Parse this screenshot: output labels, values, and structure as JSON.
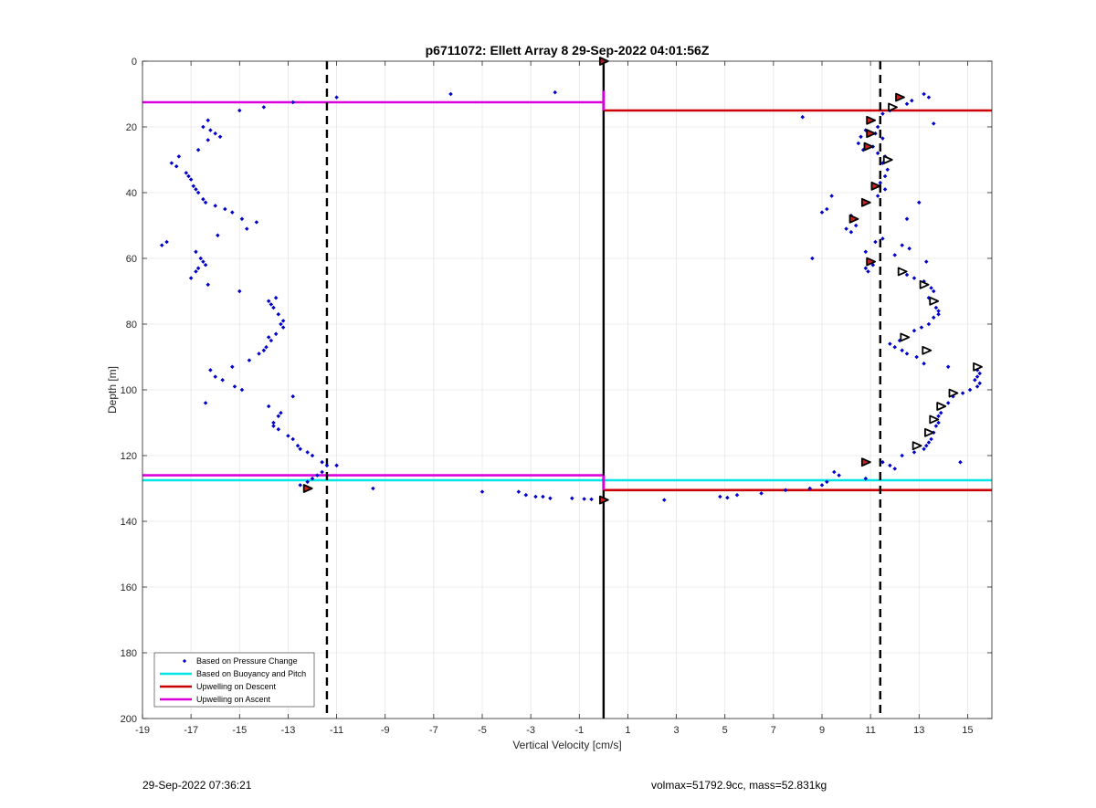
{
  "chart_data": {
    "type": "scatter",
    "title": "p6711072: Ellett Array 8 29-Sep-2022 04:01:56Z",
    "xlabel": "Vertical Velocity [cm/s]",
    "ylabel": "Depth [m]",
    "xlim": [
      -19,
      16
    ],
    "ylim": [
      0,
      200
    ],
    "y_reversed": true,
    "grid": true,
    "x_ticks": [
      -19,
      -17,
      -15,
      -13,
      -11,
      -9,
      -7,
      -5,
      -3,
      -1,
      1,
      3,
      5,
      7,
      9,
      11,
      13,
      15
    ],
    "y_ticks": [
      0,
      20,
      40,
      60,
      80,
      100,
      120,
      140,
      160,
      180,
      200
    ],
    "legend_position": "bottom-left",
    "legend": [
      {
        "label": "Based on Pressure Change",
        "color": "#0000cc",
        "kind": "dot"
      },
      {
        "label": "Based on Buoyancy and Pitch",
        "color": "#00e5e5",
        "kind": "line"
      },
      {
        "label": "Upwelling on Descent",
        "color": "#cc0000",
        "kind": "line"
      },
      {
        "label": "Upwelling on Ascent",
        "color": "#dd00dd",
        "kind": "line"
      }
    ],
    "vertical_lines": [
      {
        "x": -11.4,
        "style": "dashed",
        "color": "#000000"
      },
      {
        "x": 0,
        "style": "solid",
        "color": "#000000"
      },
      {
        "x": 11.4,
        "style": "dashed",
        "color": "#000000"
      }
    ],
    "horizontal_lines": [
      {
        "series": "Upwelling on Ascent",
        "y": 12.5,
        "x_from": -19,
        "x_to": 0,
        "color": "#dd00dd"
      },
      {
        "series": "Upwelling on Ascent",
        "y": 126,
        "x_from": -19,
        "x_to": 0,
        "color": "#dd00dd"
      },
      {
        "series": "Upwelling on Descent",
        "y": 15,
        "x_from": 0,
        "x_to": 16,
        "color": "#cc0000"
      },
      {
        "series": "Upwelling on Descent",
        "y": 130.5,
        "x_from": 0,
        "x_to": 16,
        "color": "#cc0000"
      },
      {
        "series": "Based on Buoyancy and Pitch",
        "y": 127.5,
        "x_from": -19,
        "x_to": 16,
        "color": "#00e5e5"
      }
    ],
    "vertical_segments": [
      {
        "x": 0,
        "y_from": 9,
        "y_to": 15,
        "color": "#dd00dd"
      },
      {
        "x": 0,
        "y_from": 126,
        "y_to": 130.5,
        "color": "#dd00dd"
      }
    ],
    "series": [
      {
        "name": "Based on Pressure Change",
        "color": "#0000cc",
        "points": [
          [
            -12.8,
            12.5
          ],
          [
            -14,
            14
          ],
          [
            -15,
            15
          ],
          [
            -11,
            11
          ],
          [
            -6.3,
            10
          ],
          [
            -2,
            9.5
          ],
          [
            -16.3,
            18
          ],
          [
            -16.5,
            20
          ],
          [
            -16.2,
            21
          ],
          [
            -16,
            22
          ],
          [
            -15.8,
            23
          ],
          [
            -16.3,
            24
          ],
          [
            -16.7,
            27
          ],
          [
            -17.5,
            29
          ],
          [
            -17.8,
            31
          ],
          [
            -17.6,
            32
          ],
          [
            -17.2,
            34
          ],
          [
            -17.1,
            35
          ],
          [
            -17,
            36
          ],
          [
            -16.9,
            38
          ],
          [
            -16.8,
            39
          ],
          [
            -16.7,
            40
          ],
          [
            -16.5,
            42
          ],
          [
            -16.4,
            43
          ],
          [
            -16,
            44
          ],
          [
            -15.6,
            45
          ],
          [
            -15.3,
            46
          ],
          [
            -14.9,
            48
          ],
          [
            -14.3,
            49
          ],
          [
            -14.7,
            51
          ],
          [
            -18,
            55
          ],
          [
            -18.2,
            56
          ],
          [
            -15.9,
            53
          ],
          [
            -16.8,
            58
          ],
          [
            -16.6,
            60
          ],
          [
            -16.5,
            61
          ],
          [
            -16.4,
            62
          ],
          [
            -16.7,
            63
          ],
          [
            -16.8,
            64
          ],
          [
            -17,
            66
          ],
          [
            -16.3,
            68
          ],
          [
            -15,
            70
          ],
          [
            -13.5,
            72
          ],
          [
            -13.8,
            73
          ],
          [
            -13.7,
            74
          ],
          [
            -13.6,
            75
          ],
          [
            -13.4,
            77
          ],
          [
            -13.2,
            79
          ],
          [
            -13.3,
            80
          ],
          [
            -13.2,
            81
          ],
          [
            -13.5,
            83
          ],
          [
            -13.8,
            84
          ],
          [
            -13.7,
            85
          ],
          [
            -13.9,
            87
          ],
          [
            -14,
            88
          ],
          [
            -14.2,
            89
          ],
          [
            -14.6,
            91
          ],
          [
            -15.3,
            93
          ],
          [
            -16.2,
            94
          ],
          [
            -16,
            96
          ],
          [
            -15.7,
            97
          ],
          [
            -15.2,
            99
          ],
          [
            -14.9,
            100
          ],
          [
            -16.4,
            104
          ],
          [
            -12.8,
            102
          ],
          [
            -13.8,
            105
          ],
          [
            -13.3,
            107
          ],
          [
            -13.4,
            108
          ],
          [
            -13.6,
            110
          ],
          [
            -13.6,
            111
          ],
          [
            -13.4,
            112
          ],
          [
            -13,
            114
          ],
          [
            -12.8,
            115
          ],
          [
            -12.6,
            117
          ],
          [
            -12.5,
            118
          ],
          [
            -12.2,
            119
          ],
          [
            -12,
            120
          ],
          [
            -11.6,
            122
          ],
          [
            -11.4,
            123
          ],
          [
            -11,
            123
          ],
          [
            -11.6,
            125
          ],
          [
            -11.8,
            126
          ],
          [
            -12,
            127
          ],
          [
            -12.2,
            128
          ],
          [
            -12.5,
            129
          ],
          [
            -9.5,
            130
          ],
          [
            -5,
            131
          ],
          [
            -3.5,
            131
          ],
          [
            -3.2,
            132
          ],
          [
            -2.8,
            132.5
          ],
          [
            -2.5,
            132.5
          ],
          [
            -2.2,
            133
          ],
          [
            -1.3,
            133
          ],
          [
            -0.8,
            133.2
          ],
          [
            -0.5,
            133.3
          ],
          [
            2.5,
            133.5
          ],
          [
            4.8,
            132.5
          ],
          [
            5.1,
            132.8
          ],
          [
            5.5,
            132
          ],
          [
            6.5,
            131.5
          ],
          [
            7.5,
            130.5
          ],
          [
            8.5,
            130
          ],
          [
            9,
            129
          ],
          [
            9.2,
            128
          ],
          [
            13.2,
            10
          ],
          [
            13.4,
            11
          ],
          [
            12.7,
            12
          ],
          [
            12.5,
            13
          ],
          [
            11.8,
            15
          ],
          [
            11.5,
            16
          ],
          [
            8.2,
            17
          ],
          [
            13.6,
            19
          ],
          [
            11.3,
            20
          ],
          [
            10.8,
            21
          ],
          [
            11.2,
            22
          ],
          [
            10.6,
            23
          ],
          [
            11.5,
            23.5
          ],
          [
            10.5,
            25
          ],
          [
            11.1,
            26
          ],
          [
            10.7,
            27
          ],
          [
            11.3,
            28
          ],
          [
            11.6,
            29
          ],
          [
            11.5,
            31
          ],
          [
            11.7,
            33
          ],
          [
            11.6,
            35
          ],
          [
            11.4,
            37
          ],
          [
            11.6,
            39
          ],
          [
            11.3,
            41
          ],
          [
            9.4,
            41
          ],
          [
            10.7,
            43
          ],
          [
            13,
            43
          ],
          [
            9.2,
            45
          ],
          [
            9,
            46
          ],
          [
            10.2,
            47
          ],
          [
            12.5,
            48
          ],
          [
            10.4,
            50
          ],
          [
            10,
            51
          ],
          [
            10.2,
            52
          ],
          [
            11.5,
            54
          ],
          [
            11.2,
            55
          ],
          [
            12.3,
            56
          ],
          [
            12.6,
            57
          ],
          [
            10.8,
            58
          ],
          [
            8.6,
            60
          ],
          [
            13.3,
            61
          ],
          [
            12,
            59
          ],
          [
            11.1,
            62
          ],
          [
            10.8,
            63
          ],
          [
            10.9,
            64
          ],
          [
            12.5,
            65
          ],
          [
            12.8,
            66
          ],
          [
            13.2,
            67
          ],
          [
            13.5,
            69
          ],
          [
            13.6,
            70
          ],
          [
            13.4,
            72
          ],
          [
            13.5,
            73
          ],
          [
            13.7,
            75
          ],
          [
            13.8,
            76
          ],
          [
            13.8,
            77
          ],
          [
            13.6,
            78
          ],
          [
            13.4,
            80
          ],
          [
            13.1,
            81
          ],
          [
            12.8,
            82
          ],
          [
            12.5,
            84
          ],
          [
            12.2,
            85
          ],
          [
            11.8,
            86
          ],
          [
            12,
            87
          ],
          [
            12.3,
            88
          ],
          [
            12.5,
            89
          ],
          [
            12.9,
            90
          ],
          [
            13.2,
            92
          ],
          [
            14.2,
            93
          ],
          [
            15.4,
            94
          ],
          [
            15.5,
            95
          ],
          [
            15.4,
            96
          ],
          [
            15.3,
            97
          ],
          [
            15.5,
            98
          ],
          [
            15.4,
            99
          ],
          [
            15.1,
            100
          ],
          [
            14.8,
            101
          ],
          [
            14.4,
            102
          ],
          [
            14.2,
            104
          ],
          [
            14,
            105
          ],
          [
            13.9,
            107
          ],
          [
            13.8,
            108
          ],
          [
            13.8,
            110
          ],
          [
            13.7,
            111
          ],
          [
            13.6,
            113
          ],
          [
            13.5,
            115
          ],
          [
            13.4,
            116
          ],
          [
            13.3,
            117
          ],
          [
            13.2,
            118
          ],
          [
            14.7,
            122
          ],
          [
            12.8,
            119
          ],
          [
            12.3,
            120
          ],
          [
            11.5,
            122
          ],
          [
            11.8,
            123
          ],
          [
            12,
            124
          ],
          [
            9.5,
            125
          ],
          [
            9.7,
            126
          ],
          [
            10.8,
            127
          ]
        ]
      },
      {
        "name": "filled markers",
        "color": "#cc2222",
        "points": [
          [
            0,
            0
          ],
          [
            12.2,
            11
          ],
          [
            11,
            18
          ],
          [
            11,
            22
          ],
          [
            10.9,
            26
          ],
          [
            11.2,
            38
          ],
          [
            10.8,
            43
          ],
          [
            10.3,
            48
          ],
          [
            11,
            61
          ],
          [
            10.8,
            122
          ],
          [
            -12.2,
            130
          ],
          [
            0,
            133.5
          ]
        ]
      },
      {
        "name": "open markers",
        "color": "#000000",
        "points": [
          [
            11.9,
            14
          ],
          [
            11.7,
            30
          ],
          [
            12.3,
            64
          ],
          [
            13.2,
            68
          ],
          [
            13.6,
            73
          ],
          [
            12.4,
            84
          ],
          [
            13.3,
            88
          ],
          [
            15.4,
            93
          ],
          [
            14.4,
            101
          ],
          [
            13.9,
            105
          ],
          [
            13.6,
            109
          ],
          [
            13.4,
            113
          ],
          [
            12.9,
            117
          ]
        ]
      }
    ]
  },
  "footer": {
    "left": "29-Sep-2022 07:36:21",
    "right": "volmax=51792.9cc, mass=52.831kg"
  }
}
